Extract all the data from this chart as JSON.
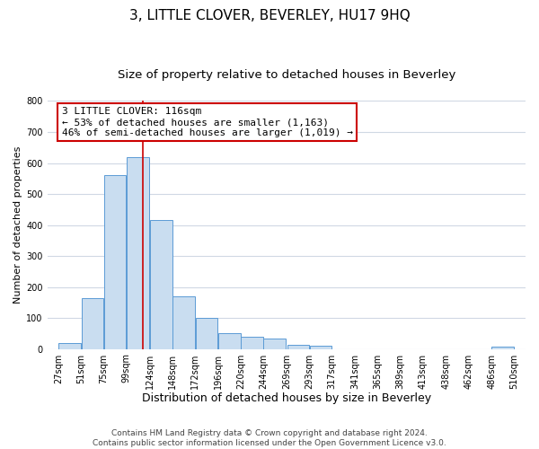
{
  "title": "3, LITTLE CLOVER, BEVERLEY, HU17 9HQ",
  "subtitle": "Size of property relative to detached houses in Beverley",
  "xlabel": "Distribution of detached houses by size in Beverley",
  "ylabel": "Number of detached properties",
  "bar_left_edges": [
    27,
    51,
    75,
    99,
    124,
    148,
    172,
    196,
    220,
    244,
    269,
    293,
    317,
    341,
    365,
    389,
    413,
    438,
    462,
    486
  ],
  "bar_heights": [
    20,
    165,
    560,
    620,
    415,
    170,
    100,
    50,
    40,
    33,
    13,
    10,
    0,
    0,
    0,
    0,
    0,
    0,
    0,
    8
  ],
  "bar_widths": [
    24,
    24,
    24,
    24,
    24,
    24,
    24,
    24,
    24,
    24,
    24,
    24,
    24,
    24,
    24,
    24,
    24,
    24,
    24,
    24
  ],
  "xtick_labels": [
    "27sqm",
    "51sqm",
    "75sqm",
    "99sqm",
    "124sqm",
    "148sqm",
    "172sqm",
    "196sqm",
    "220sqm",
    "244sqm",
    "269sqm",
    "293sqm",
    "317sqm",
    "341sqm",
    "365sqm",
    "389sqm",
    "413sqm",
    "438sqm",
    "462sqm",
    "486sqm",
    "510sqm"
  ],
  "xtick_positions": [
    27,
    51,
    75,
    99,
    124,
    148,
    172,
    196,
    220,
    244,
    269,
    293,
    317,
    341,
    365,
    389,
    413,
    438,
    462,
    486,
    510
  ],
  "ylim": [
    0,
    800
  ],
  "xlim": [
    15,
    522
  ],
  "ytick_positions": [
    0,
    100,
    200,
    300,
    400,
    500,
    600,
    700,
    800
  ],
  "bar_fill_color": "#c9ddf0",
  "bar_edge_color": "#5b9bd5",
  "grid_color": "#d0d8e4",
  "vline_x": 116,
  "vline_color": "#cc0000",
  "annotation_line1": "3 LITTLE CLOVER: 116sqm",
  "annotation_line2": "← 53% of detached houses are smaller (1,163)",
  "annotation_line3": "46% of semi-detached houses are larger (1,019) →",
  "annotation_box_color": "#ffffff",
  "annotation_box_edge": "#cc0000",
  "footnote": "Contains HM Land Registry data © Crown copyright and database right 2024.\nContains public sector information licensed under the Open Government Licence v3.0.",
  "background_color": "#ffffff",
  "title_fontsize": 11,
  "subtitle_fontsize": 9.5,
  "xlabel_fontsize": 9,
  "ylabel_fontsize": 8,
  "annotation_fontsize": 8,
  "footnote_fontsize": 6.5,
  "tick_fontsize": 7
}
